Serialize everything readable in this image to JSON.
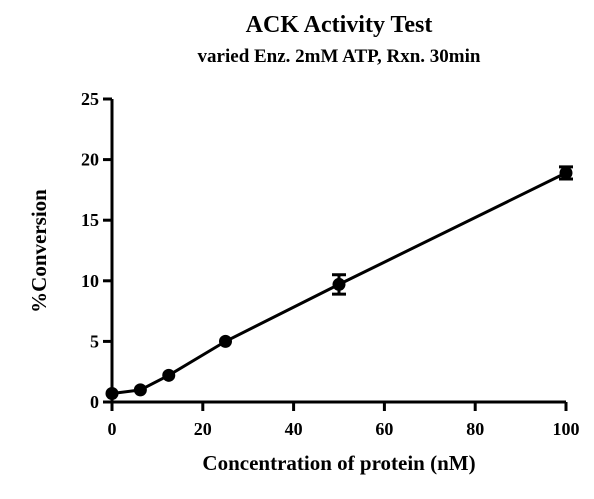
{
  "chart_data": {
    "type": "scatter",
    "title": "ACK Activity Test",
    "subtitle": "varied Enz. 2mM ATP, Rxn. 30min",
    "xlabel": "Concentration of protein (nM)",
    "ylabel": "%Conversion",
    "xlim": [
      0,
      100
    ],
    "ylim": [
      0,
      25
    ],
    "xticks": [
      0,
      20,
      40,
      60,
      80,
      100
    ],
    "yticks": [
      0,
      5,
      10,
      15,
      20,
      25
    ],
    "grid": false,
    "series": [
      {
        "x": [
          0,
          6.25,
          12.5,
          25,
          50,
          100
        ],
        "y": [
          0.7,
          1.0,
          2.2,
          5.0,
          9.7,
          18.9
        ],
        "error": [
          0,
          0,
          0,
          0,
          0.8,
          0.5
        ]
      }
    ]
  }
}
